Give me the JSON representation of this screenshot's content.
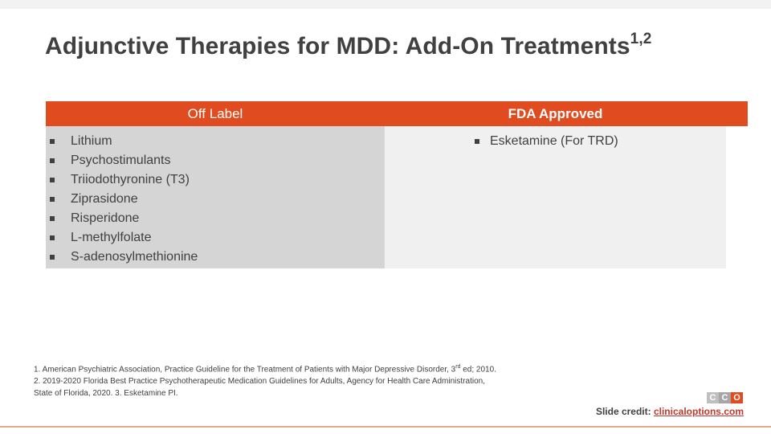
{
  "slide": {
    "title": "Adjunctive Therapies for MDD: Add-On Treatments",
    "title_sup": "1,2"
  },
  "table": {
    "left": {
      "header": "Off Label",
      "items": [
        "Lithium",
        "Psychostimulants",
        "Triiodothyronine (T3)",
        "Ziprasidone",
        "Risperidone",
        "L-methylfolate",
        "S-adenosylmethionine"
      ]
    },
    "right": {
      "header": "FDA Approved",
      "items": [
        "Esketamine (For TRD)"
      ]
    }
  },
  "references": {
    "line1_a": "1. American Psychiatric Association, Practice Guideline for the Treatment of Patients with Major Depressive Disorder, 3",
    "line1_sup": "rd",
    "line1_b": " ed; 2010.",
    "line2": "2. 2019-2020 Florida Best Practice Psychotherapeutic Medication Guidelines for Adults, Agency for Health Care Administration,",
    "line3": "State of Florida, 2020. 3. Esketamine PI."
  },
  "footer": {
    "logo_letters": [
      "C",
      "C",
      "O"
    ],
    "credit_label": "Slide credit:",
    "credit_link": "clinicaloptions.com"
  },
  "colors": {
    "accent": "#e04b1f",
    "left_column_bg": "#d5d5d5",
    "right_column_bg": "#f0f0f0",
    "text": "#404040"
  }
}
